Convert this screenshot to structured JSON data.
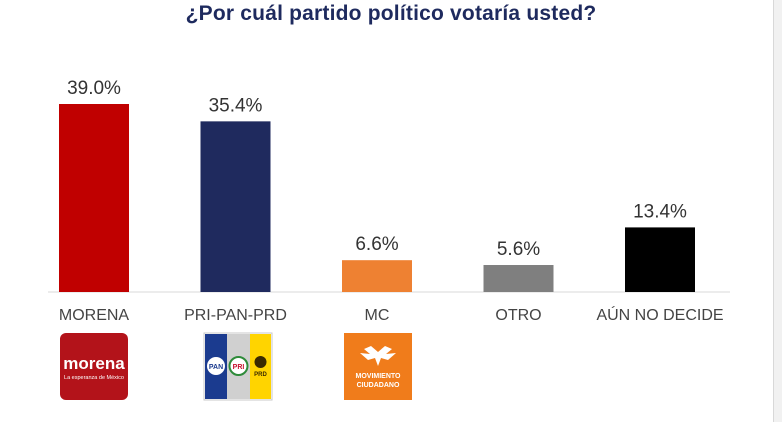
{
  "chart_data": {
    "type": "bar",
    "title": "¿Por cuál partido político votaría usted?",
    "categories": [
      "MORENA",
      "PRI-PAN-PRD",
      "MC",
      "OTRO",
      "AÚN NO DECIDE"
    ],
    "values": [
      39.0,
      35.4,
      6.6,
      5.6,
      13.4
    ],
    "value_labels": [
      "39.0%",
      "35.4%",
      "6.6%",
      "5.6%",
      "13.4%"
    ],
    "colors": [
      "#c00000",
      "#1f2a5e",
      "#ee8132",
      "#7f7f7f",
      "#000000"
    ],
    "ylim": [
      0,
      42
    ],
    "xlabel": "",
    "ylabel": "",
    "grid": false
  },
  "logos": {
    "morena": {
      "name": "morena",
      "tagline": "La esperanza de México",
      "color": "#b3131a"
    },
    "pri_pan_prd": {
      "pan": "PAN",
      "pri": "PRI",
      "prd": "PRD",
      "colors": [
        "#1b3b8f",
        "#d0d0d0",
        "#ffd400"
      ]
    },
    "mc": {
      "line1": "MOVIMIENTO",
      "line2": "CIUDADANO",
      "color": "#f07c1b"
    }
  }
}
